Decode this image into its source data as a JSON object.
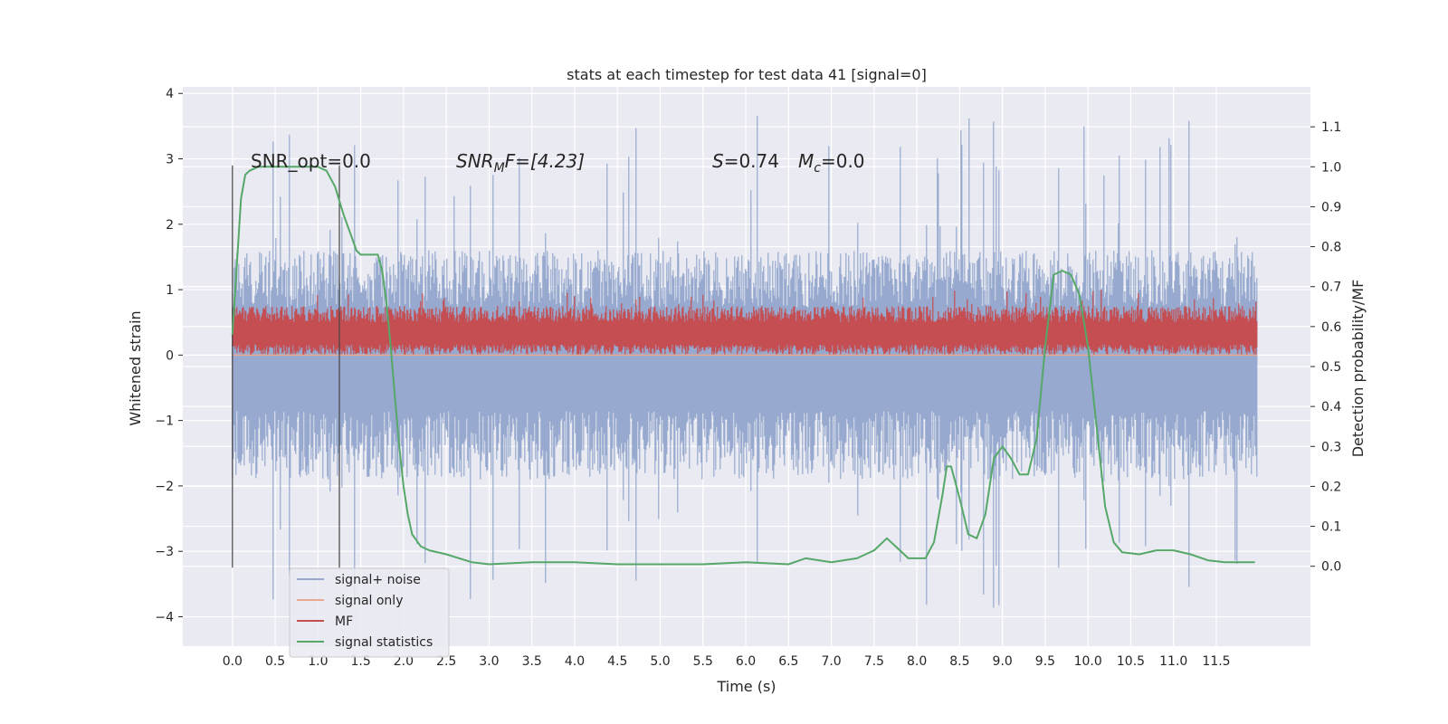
{
  "chart_data": {
    "type": "line",
    "title": "stats at each timestep for test data 41 [signal=0]",
    "xlabel": "Time (s)",
    "ylabel_left": "Whitened strain",
    "ylabel_right": "Detection probability/MF",
    "xlim": [
      -0.58,
      12.6
    ],
    "ylim_left": [
      -4.45,
      4.1
    ],
    "ylim_right": [
      -0.2,
      1.2
    ],
    "xticks": [
      "0.0",
      "0.5",
      "1.0",
      "1.5",
      "2.0",
      "2.5",
      "3.0",
      "3.5",
      "4.0",
      "4.5",
      "5.0",
      "5.5",
      "6.0",
      "6.5",
      "7.0",
      "7.5",
      "8.0",
      "8.5",
      "9.0",
      "9.5",
      "10.0",
      "10.5",
      "11.0",
      "11.5"
    ],
    "yticks_left": [
      "−4",
      "−3",
      "−2",
      "−1",
      "0",
      "1",
      "2",
      "3",
      "4"
    ],
    "yticks_right": [
      "0.0",
      "0.1",
      "0.2",
      "0.3",
      "0.4",
      "0.5",
      "0.6",
      "0.7",
      "0.8",
      "0.9",
      "1.0",
      "1.1"
    ],
    "grid": true,
    "legend_position": "lower-left",
    "annotations": {
      "snr_opt": "SNR_opt=0.0",
      "snr_mf_italic": "SNR",
      "snr_mf_sub": "M",
      "snr_mf_rest": "F=[4.23]",
      "s_italic": "S",
      "s_value": "=0.74",
      "mc_italic": "M",
      "mc_sub": "c",
      "mc_value": "=0.0"
    },
    "vertical_lines_x": [
      0.0,
      1.25
    ],
    "series": [
      {
        "name": "signal+ noise",
        "color": "#97a9cf",
        "kind": "noise",
        "center": 0.0,
        "range_typical": [
          -1.9,
          1.6
        ],
        "range_extreme": [
          -3.9,
          3.7
        ]
      },
      {
        "name": "signal only",
        "color": "#e8a98e",
        "kind": "flat",
        "value": 0.0
      },
      {
        "name": "MF",
        "color": "#c44e52",
        "kind": "noise",
        "center": 0.3,
        "range_typical": [
          0.0,
          0.75
        ],
        "range_extreme": [
          0.0,
          1.0
        ]
      },
      {
        "name": "signal statistics",
        "color": "#55a868",
        "axis": "right",
        "x": [
          0.0,
          0.05,
          0.1,
          0.15,
          0.2,
          0.3,
          0.5,
          0.8,
          1.0,
          1.1,
          1.2,
          1.3,
          1.4,
          1.45,
          1.5,
          1.6,
          1.7,
          1.75,
          1.8,
          1.85,
          1.9,
          1.95,
          2.0,
          2.05,
          2.1,
          2.2,
          2.3,
          2.5,
          2.8,
          3.0,
          3.5,
          4.0,
          4.5,
          5.0,
          5.5,
          6.0,
          6.5,
          6.7,
          7.0,
          7.3,
          7.5,
          7.65,
          7.75,
          7.9,
          8.1,
          8.2,
          8.3,
          8.35,
          8.4,
          8.5,
          8.6,
          8.7,
          8.8,
          8.9,
          9.0,
          9.1,
          9.2,
          9.3,
          9.4,
          9.5,
          9.6,
          9.7,
          9.8,
          9.9,
          10.0,
          10.1,
          10.2,
          10.3,
          10.4,
          10.6,
          10.8,
          11.0,
          11.2,
          11.4,
          11.6,
          11.8,
          11.95
        ],
        "values": [
          0.58,
          0.75,
          0.92,
          0.98,
          0.99,
          1.0,
          1.0,
          1.0,
          1.0,
          0.99,
          0.95,
          0.88,
          0.82,
          0.79,
          0.78,
          0.78,
          0.78,
          0.74,
          0.66,
          0.55,
          0.42,
          0.3,
          0.2,
          0.13,
          0.08,
          0.05,
          0.04,
          0.03,
          0.01,
          0.005,
          0.01,
          0.01,
          0.005,
          0.005,
          0.005,
          0.01,
          0.005,
          0.02,
          0.01,
          0.02,
          0.04,
          0.07,
          0.05,
          0.02,
          0.02,
          0.06,
          0.18,
          0.25,
          0.25,
          0.17,
          0.08,
          0.07,
          0.13,
          0.27,
          0.3,
          0.27,
          0.23,
          0.23,
          0.32,
          0.55,
          0.73,
          0.74,
          0.73,
          0.68,
          0.55,
          0.35,
          0.15,
          0.06,
          0.035,
          0.03,
          0.04,
          0.04,
          0.03,
          0.015,
          0.01,
          0.01,
          0.01
        ]
      }
    ]
  }
}
